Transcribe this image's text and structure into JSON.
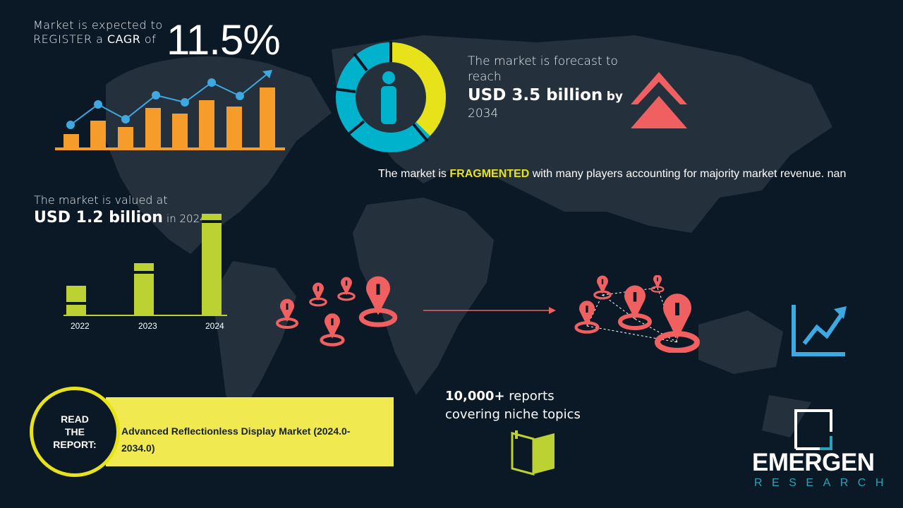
{
  "cagr": {
    "prefix_line1": "Market is expected to",
    "prefix_line2_a": "REGISTER a ",
    "prefix_line2_b": "CAGR",
    "prefix_line2_c": " of",
    "value": "11.5%"
  },
  "forecast": {
    "line1": "The market is forecast to reach",
    "value": "USD 3.5 billion",
    "by": "by",
    "year": "2034"
  },
  "fragmented": {
    "prefix": "The market is ",
    "highlight": "FRAGMENTED",
    "suffix": " with many players accounting for majority market revenue. nan"
  },
  "valued": {
    "line1": "The market is valued at",
    "value": "USD 1.2 billion",
    "suffix": "in 2024"
  },
  "years": [
    "2022",
    "2023",
    "2024"
  ],
  "reports": {
    "count": "10,000+",
    "line1_suffix": " reports",
    "line2": "covering niche topics"
  },
  "read_report": {
    "badge_line1": "READ",
    "badge_line2": "THE",
    "badge_line3": "REPORT:",
    "title": "Advanced Reflectionless Display Market (2024.0-2034.0)"
  },
  "logo": {
    "name": "EMERGEN",
    "sub": "RESEARCH"
  },
  "colors": {
    "background": "#0b1826",
    "map": "#24303c",
    "orange": "#f59c2a",
    "blue": "#3ea8e0",
    "yellow": "#e8e21b",
    "lime": "#bcd232",
    "red": "#f06060",
    "cyan": "#00b2cc"
  },
  "icons": [
    "growth-chart-icon",
    "donut-person-icon",
    "double-chevron-up-icon",
    "location-pin-icon",
    "network-pins-icon",
    "trend-up-icon",
    "open-book-icon",
    "emergen-logo"
  ]
}
